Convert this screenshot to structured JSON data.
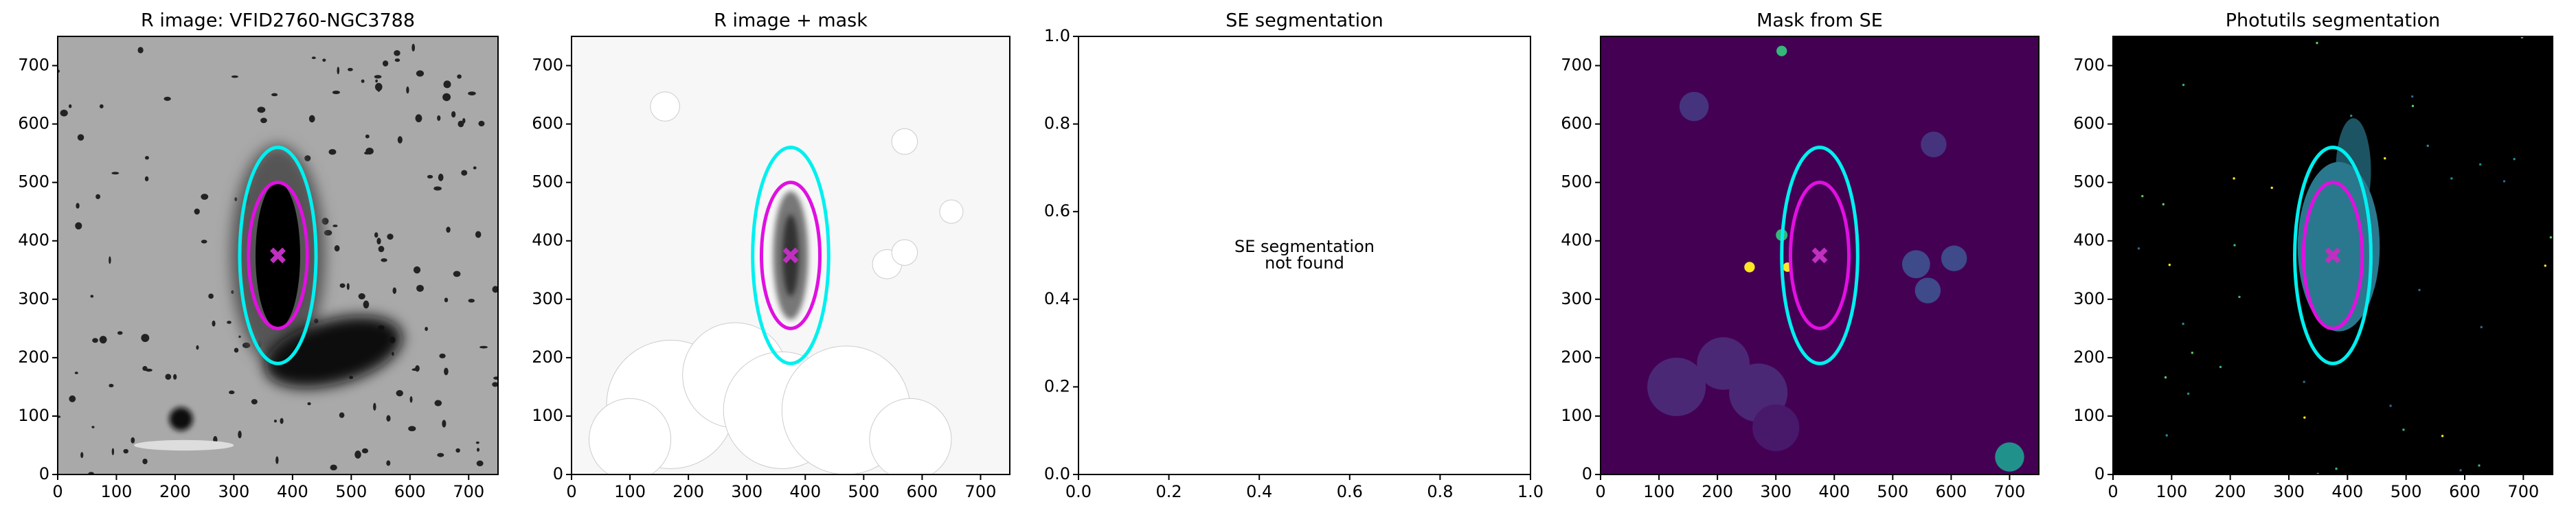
{
  "chart_data": [
    {
      "type": "image",
      "title": "R image: VFID2760-NGC3788",
      "xlim": [
        0,
        750
      ],
      "ylim": [
        0,
        750
      ],
      "xticks": [
        0,
        100,
        200,
        300,
        400,
        500,
        600,
        700
      ],
      "yticks": [
        0,
        100,
        200,
        300,
        400,
        500,
        600,
        700
      ]
    },
    {
      "type": "image",
      "title": "R image + mask",
      "xlim": [
        0,
        750
      ],
      "ylim": [
        0,
        750
      ],
      "xticks": [
        0,
        100,
        200,
        300,
        400,
        500,
        600,
        700
      ],
      "yticks": [
        0,
        100,
        200,
        300,
        400,
        500,
        600,
        700
      ]
    },
    {
      "type": "empty",
      "title": "SE segmentation",
      "xlim": [
        0,
        1
      ],
      "ylim": [
        0,
        1
      ],
      "xticks": [
        {
          "value": 0,
          "label": "0.0"
        },
        {
          "value": 0.2,
          "label": "0.2"
        },
        {
          "value": 0.4,
          "label": "0.4"
        },
        {
          "value": 0.6,
          "label": "0.6"
        },
        {
          "value": 0.8,
          "label": "0.8"
        },
        {
          "value": 1,
          "label": "1.0"
        }
      ],
      "yticks": [
        {
          "value": 0,
          "label": "0.0"
        },
        {
          "value": 0.2,
          "label": "0.2"
        },
        {
          "value": 0.4,
          "label": "0.4"
        },
        {
          "value": 0.6,
          "label": "0.6"
        },
        {
          "value": 0.8,
          "label": "0.8"
        },
        {
          "value": 1,
          "label": "1.0"
        }
      ],
      "annotation": [
        "SE segmentation",
        "not found"
      ]
    },
    {
      "type": "image",
      "title": "Mask from SE",
      "xlim": [
        0,
        750
      ],
      "ylim": [
        0,
        750
      ],
      "xticks": [
        0,
        100,
        200,
        300,
        400,
        500,
        600,
        700
      ],
      "yticks": [
        0,
        100,
        200,
        300,
        400,
        500,
        600,
        700
      ]
    },
    {
      "type": "image",
      "title": "Photutils segmentation",
      "xlim": [
        0,
        750
      ],
      "ylim": [
        0,
        750
      ],
      "xticks": [
        0,
        100,
        200,
        300,
        400,
        500,
        600,
        700
      ],
      "yticks": [
        0,
        100,
        200,
        300,
        400,
        500,
        600,
        700
      ]
    }
  ]
}
